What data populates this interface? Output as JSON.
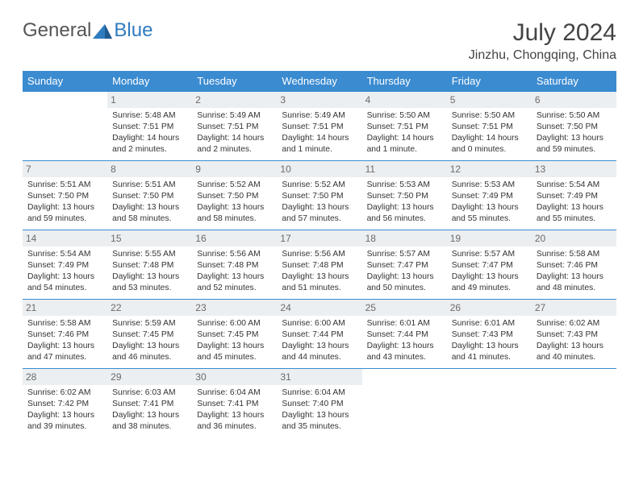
{
  "brand": {
    "general": "General",
    "blue": "Blue"
  },
  "title": "July 2024",
  "location": "Jinzhu, Chongqing, China",
  "colors": {
    "header_bg": "#3b8bd0",
    "header_text": "#ffffff",
    "daynum_bg": "#eceff1",
    "daynum_text": "#6a6a6a",
    "body_text": "#333333",
    "border": "#3b8bd0",
    "logo_blue": "#2f7bbf"
  },
  "weekdays": [
    "Sunday",
    "Monday",
    "Tuesday",
    "Wednesday",
    "Thursday",
    "Friday",
    "Saturday"
  ],
  "weeks": [
    [
      null,
      {
        "n": "1",
        "sr": "5:48 AM",
        "ss": "7:51 PM",
        "dl": "14 hours and 2 minutes."
      },
      {
        "n": "2",
        "sr": "5:49 AM",
        "ss": "7:51 PM",
        "dl": "14 hours and 2 minutes."
      },
      {
        "n": "3",
        "sr": "5:49 AM",
        "ss": "7:51 PM",
        "dl": "14 hours and 1 minute."
      },
      {
        "n": "4",
        "sr": "5:50 AM",
        "ss": "7:51 PM",
        "dl": "14 hours and 1 minute."
      },
      {
        "n": "5",
        "sr": "5:50 AM",
        "ss": "7:51 PM",
        "dl": "14 hours and 0 minutes."
      },
      {
        "n": "6",
        "sr": "5:50 AM",
        "ss": "7:50 PM",
        "dl": "13 hours and 59 minutes."
      }
    ],
    [
      {
        "n": "7",
        "sr": "5:51 AM",
        "ss": "7:50 PM",
        "dl": "13 hours and 59 minutes."
      },
      {
        "n": "8",
        "sr": "5:51 AM",
        "ss": "7:50 PM",
        "dl": "13 hours and 58 minutes."
      },
      {
        "n": "9",
        "sr": "5:52 AM",
        "ss": "7:50 PM",
        "dl": "13 hours and 58 minutes."
      },
      {
        "n": "10",
        "sr": "5:52 AM",
        "ss": "7:50 PM",
        "dl": "13 hours and 57 minutes."
      },
      {
        "n": "11",
        "sr": "5:53 AM",
        "ss": "7:50 PM",
        "dl": "13 hours and 56 minutes."
      },
      {
        "n": "12",
        "sr": "5:53 AM",
        "ss": "7:49 PM",
        "dl": "13 hours and 55 minutes."
      },
      {
        "n": "13",
        "sr": "5:54 AM",
        "ss": "7:49 PM",
        "dl": "13 hours and 55 minutes."
      }
    ],
    [
      {
        "n": "14",
        "sr": "5:54 AM",
        "ss": "7:49 PM",
        "dl": "13 hours and 54 minutes."
      },
      {
        "n": "15",
        "sr": "5:55 AM",
        "ss": "7:48 PM",
        "dl": "13 hours and 53 minutes."
      },
      {
        "n": "16",
        "sr": "5:56 AM",
        "ss": "7:48 PM",
        "dl": "13 hours and 52 minutes."
      },
      {
        "n": "17",
        "sr": "5:56 AM",
        "ss": "7:48 PM",
        "dl": "13 hours and 51 minutes."
      },
      {
        "n": "18",
        "sr": "5:57 AM",
        "ss": "7:47 PM",
        "dl": "13 hours and 50 minutes."
      },
      {
        "n": "19",
        "sr": "5:57 AM",
        "ss": "7:47 PM",
        "dl": "13 hours and 49 minutes."
      },
      {
        "n": "20",
        "sr": "5:58 AM",
        "ss": "7:46 PM",
        "dl": "13 hours and 48 minutes."
      }
    ],
    [
      {
        "n": "21",
        "sr": "5:58 AM",
        "ss": "7:46 PM",
        "dl": "13 hours and 47 minutes."
      },
      {
        "n": "22",
        "sr": "5:59 AM",
        "ss": "7:45 PM",
        "dl": "13 hours and 46 minutes."
      },
      {
        "n": "23",
        "sr": "6:00 AM",
        "ss": "7:45 PM",
        "dl": "13 hours and 45 minutes."
      },
      {
        "n": "24",
        "sr": "6:00 AM",
        "ss": "7:44 PM",
        "dl": "13 hours and 44 minutes."
      },
      {
        "n": "25",
        "sr": "6:01 AM",
        "ss": "7:44 PM",
        "dl": "13 hours and 43 minutes."
      },
      {
        "n": "26",
        "sr": "6:01 AM",
        "ss": "7:43 PM",
        "dl": "13 hours and 41 minutes."
      },
      {
        "n": "27",
        "sr": "6:02 AM",
        "ss": "7:43 PM",
        "dl": "13 hours and 40 minutes."
      }
    ],
    [
      {
        "n": "28",
        "sr": "6:02 AM",
        "ss": "7:42 PM",
        "dl": "13 hours and 39 minutes."
      },
      {
        "n": "29",
        "sr": "6:03 AM",
        "ss": "7:41 PM",
        "dl": "13 hours and 38 minutes."
      },
      {
        "n": "30",
        "sr": "6:04 AM",
        "ss": "7:41 PM",
        "dl": "13 hours and 36 minutes."
      },
      {
        "n": "31",
        "sr": "6:04 AM",
        "ss": "7:40 PM",
        "dl": "13 hours and 35 minutes."
      },
      null,
      null,
      null
    ]
  ],
  "labels": {
    "sunrise": "Sunrise: ",
    "sunset": "Sunset: ",
    "daylight": "Daylight: "
  }
}
